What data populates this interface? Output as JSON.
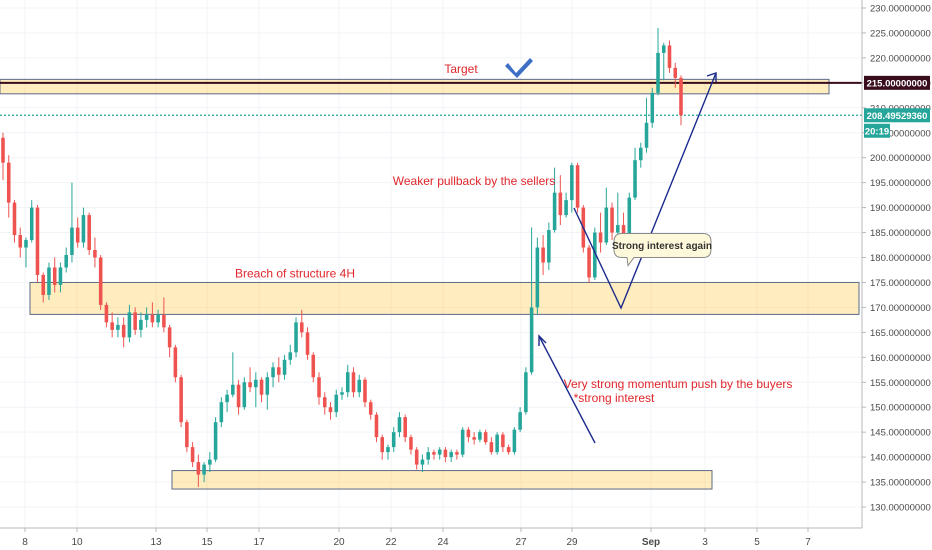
{
  "chart_data": {
    "type": "candlestick",
    "y_axis": {
      "ylim": [
        128.4,
        231.5
      ],
      "ticks": [
        "230.00000000",
        "225.00000000",
        "220.00000000",
        "215.00000000",
        "210.00000000",
        "205.00000000",
        "200.00000000",
        "195.00000000",
        "190.00000000",
        "185.00000000",
        "180.00000000",
        "175.00000000",
        "170.00000000",
        "165.00000000",
        "160.00000000",
        "155.00000000",
        "150.00000000",
        "145.00000000",
        "140.00000000",
        "135.00000000",
        "130.00000000"
      ]
    },
    "x_axis": {
      "ticks": [
        "8",
        "10",
        "13",
        "15",
        "17",
        "20",
        "22",
        "24",
        "27",
        "29",
        "Sep",
        "3",
        "5",
        "7"
      ]
    },
    "price_tags": [
      {
        "label": "215.00000000",
        "value": 215.0,
        "color": "#3a0d1e"
      },
      {
        "label": "208.49529360",
        "value": 208.5,
        "color": "#26a69a"
      },
      {
        "label": "20:19",
        "value": 205.4,
        "color": "#26a69a"
      }
    ],
    "horizontal_lines": [
      {
        "value": 215.0,
        "style": "solid",
        "color": "#3a0d1e"
      },
      {
        "value": 208.5,
        "style": "dotted",
        "color": "#26a69a"
      }
    ],
    "zones": [
      {
        "name": "target",
        "low": 212.8,
        "high": 215.7
      },
      {
        "name": "structure",
        "low": 168.6,
        "high": 175.0
      },
      {
        "name": "support",
        "low": 133.6,
        "high": 137.3
      }
    ],
    "annotations": [
      {
        "text": "Target",
        "value": 217.0
      },
      {
        "text": "Weaker pullback by the sellers",
        "value": 194.5
      },
      {
        "text": "Breach of structure 4H",
        "value": 176.0
      },
      {
        "text": "Very strong momentum push by the buyers",
        "value": 153.8
      },
      {
        "text": "*strong interest",
        "value": 151.0
      }
    ],
    "callout": {
      "text": "Strong interest again",
      "value": 182.4
    },
    "candles": [
      [
        204.0,
        205.0,
        195.5,
        199.0
      ],
      [
        199.0,
        200.5,
        188.0,
        191.0
      ],
      [
        191.0,
        191.5,
        183.0,
        184.5
      ],
      [
        184.5,
        186.0,
        180.0,
        182.0
      ],
      [
        182.0,
        184.0,
        178.0,
        183.5
      ],
      [
        183.5,
        191.5,
        183.0,
        190.0
      ],
      [
        190.0,
        190.5,
        175.0,
        176.5
      ],
      [
        176.5,
        177.0,
        171.0,
        172.5
      ],
      [
        172.5,
        179.0,
        171.5,
        178.0
      ],
      [
        178.0,
        180.0,
        173.0,
        174.5
      ],
      [
        174.5,
        179.0,
        173.0,
        178.0
      ],
      [
        178.0,
        182.0,
        177.0,
        180.5
      ],
      [
        180.5,
        195.0,
        179.0,
        186.0
      ],
      [
        186.0,
        188.0,
        182.0,
        183.0
      ],
      [
        183.0,
        190.0,
        182.0,
        188.5
      ],
      [
        188.5,
        189.0,
        180.5,
        181.5
      ],
      [
        181.5,
        184.0,
        178.0,
        180.0
      ],
      [
        180.0,
        180.5,
        169.5,
        170.5
      ],
      [
        170.5,
        171.0,
        166.0,
        167.0
      ],
      [
        167.0,
        169.0,
        164.0,
        165.5
      ],
      [
        165.5,
        168.0,
        164.0,
        166.5
      ],
      [
        166.5,
        168.0,
        162.0,
        164.0
      ],
      [
        164.0,
        170.5,
        163.0,
        169.0
      ],
      [
        169.0,
        170.0,
        164.5,
        165.5
      ],
      [
        165.5,
        169.0,
        164.0,
        167.5
      ],
      [
        167.5,
        170.0,
        166.0,
        168.5
      ],
      [
        168.5,
        171.0,
        166.0,
        167.0
      ],
      [
        167.0,
        169.5,
        166.0,
        168.5
      ],
      [
        168.5,
        172.0,
        165.0,
        166.0
      ],
      [
        166.0,
        166.5,
        160.0,
        162.0
      ],
      [
        162.0,
        162.5,
        155.0,
        156.0
      ],
      [
        156.0,
        156.5,
        146.0,
        147.0
      ],
      [
        147.0,
        147.5,
        141.0,
        142.0
      ],
      [
        142.0,
        143.0,
        138.0,
        139.0
      ],
      [
        139.0,
        140.5,
        134.0,
        136.5
      ],
      [
        136.5,
        139.0,
        135.0,
        138.5
      ],
      [
        138.5,
        141.0,
        137.0,
        139.5
      ],
      [
        139.5,
        148.0,
        139.0,
        147.0
      ],
      [
        147.0,
        152.0,
        146.0,
        151.0
      ],
      [
        151.0,
        153.5,
        149.0,
        152.5
      ],
      [
        152.5,
        161.0,
        152.0,
        154.5
      ],
      [
        154.5,
        155.5,
        148.5,
        150.0
      ],
      [
        150.0,
        156.0,
        149.5,
        155.0
      ],
      [
        155.0,
        158.0,
        153.0,
        154.0
      ],
      [
        154.0,
        157.0,
        150.0,
        155.5
      ],
      [
        155.5,
        156.0,
        151.0,
        152.5
      ],
      [
        152.5,
        157.0,
        149.5,
        156.0
      ],
      [
        156.0,
        159.0,
        154.0,
        158.0
      ],
      [
        158.0,
        160.0,
        155.0,
        156.5
      ],
      [
        156.5,
        160.5,
        155.5,
        159.5
      ],
      [
        159.5,
        162.5,
        158.5,
        161.0
      ],
      [
        161.0,
        168.0,
        160.0,
        167.0
      ],
      [
        167.0,
        169.5,
        164.0,
        165.0
      ],
      [
        165.0,
        166.0,
        159.5,
        160.5
      ],
      [
        160.5,
        161.0,
        155.0,
        156.0
      ],
      [
        156.0,
        157.0,
        150.5,
        152.0
      ],
      [
        152.0,
        153.0,
        148.5,
        150.0
      ],
      [
        150.0,
        151.0,
        147.5,
        149.0
      ],
      [
        149.0,
        153.5,
        148.0,
        152.5
      ],
      [
        152.5,
        154.0,
        151.5,
        153.0
      ],
      [
        153.0,
        158.5,
        152.0,
        157.0
      ],
      [
        157.0,
        158.0,
        152.0,
        153.0
      ],
      [
        153.0,
        156.5,
        152.0,
        155.5
      ],
      [
        155.5,
        156.0,
        150.0,
        151.0
      ],
      [
        151.0,
        151.5,
        147.5,
        148.5
      ],
      [
        148.5,
        149.0,
        143.0,
        144.0
      ],
      [
        144.0,
        144.5,
        139.5,
        141.0
      ],
      [
        141.0,
        142.5,
        139.5,
        142.0
      ],
      [
        142.0,
        146.0,
        141.0,
        145.0
      ],
      [
        145.0,
        149.0,
        144.0,
        148.0
      ],
      [
        148.0,
        148.5,
        143.0,
        144.0
      ],
      [
        144.0,
        144.5,
        140.5,
        141.5
      ],
      [
        141.5,
        142.0,
        137.5,
        138.5
      ],
      [
        138.5,
        140.5,
        137.0,
        139.5
      ],
      [
        139.5,
        142.0,
        138.5,
        141.0
      ],
      [
        141.0,
        141.5,
        139.5,
        140.5
      ],
      [
        140.5,
        142.0,
        139.5,
        141.5
      ],
      [
        141.5,
        142.0,
        139.0,
        140.0
      ],
      [
        140.0,
        141.5,
        139.0,
        141.0
      ],
      [
        141.0,
        141.5,
        139.5,
        140.5
      ],
      [
        140.5,
        146.0,
        140.0,
        145.5
      ],
      [
        145.5,
        146.0,
        143.0,
        144.0
      ],
      [
        144.0,
        145.0,
        142.5,
        143.5
      ],
      [
        143.5,
        145.5,
        143.0,
        145.0
      ],
      [
        145.0,
        145.5,
        142.5,
        143.0
      ],
      [
        143.0,
        144.0,
        140.5,
        141.0
      ],
      [
        141.0,
        145.0,
        140.5,
        144.5
      ],
      [
        144.5,
        145.0,
        141.0,
        142.0
      ],
      [
        142.0,
        142.5,
        140.5,
        141.0
      ],
      [
        141.0,
        146.0,
        140.5,
        145.5
      ],
      [
        145.5,
        150.0,
        145.0,
        149.0
      ],
      [
        149.0,
        158.0,
        148.5,
        157.0
      ],
      [
        157.0,
        186.0,
        156.5,
        170.0
      ],
      [
        170.0,
        184.0,
        168.5,
        182.0
      ],
      [
        182.0,
        184.5,
        176.5,
        179.0
      ],
      [
        179.0,
        187.0,
        177.5,
        185.5
      ],
      [
        185.5,
        198.0,
        185.0,
        193.0
      ],
      [
        193.0,
        196.5,
        186.5,
        188.5
      ],
      [
        188.5,
        193.0,
        188.0,
        191.5
      ],
      [
        191.5,
        199.0,
        189.0,
        198.5
      ],
      [
        198.5,
        199.0,
        189.0,
        190.0
      ],
      [
        190.0,
        190.5,
        181.0,
        182.0
      ],
      [
        182.0,
        182.5,
        175.0,
        176.0
      ],
      [
        176.0,
        186.0,
        175.5,
        185.0
      ],
      [
        185.0,
        189.0,
        181.0,
        183.0
      ],
      [
        183.0,
        194.0,
        182.5,
        190.0
      ],
      [
        190.0,
        191.0,
        183.5,
        185.0
      ],
      [
        185.0,
        193.0,
        184.0,
        186.5
      ],
      [
        186.5,
        189.0,
        182.0,
        183.5
      ],
      [
        183.5,
        193.0,
        183.0,
        192.0
      ],
      [
        192.0,
        202.0,
        191.5,
        199.5
      ],
      [
        199.5,
        203.0,
        198.0,
        202.0
      ],
      [
        202.0,
        212.0,
        201.0,
        207.0
      ],
      [
        207.0,
        214.0,
        206.0,
        213.0
      ],
      [
        213.0,
        226.0,
        212.5,
        221.0
      ],
      [
        221.0,
        223.0,
        215.5,
        222.5
      ],
      [
        222.5,
        223.5,
        217.0,
        218.0
      ],
      [
        218.0,
        219.0,
        214.0,
        216.0
      ],
      [
        216.0,
        216.5,
        206.5,
        208.5
      ]
    ]
  }
}
